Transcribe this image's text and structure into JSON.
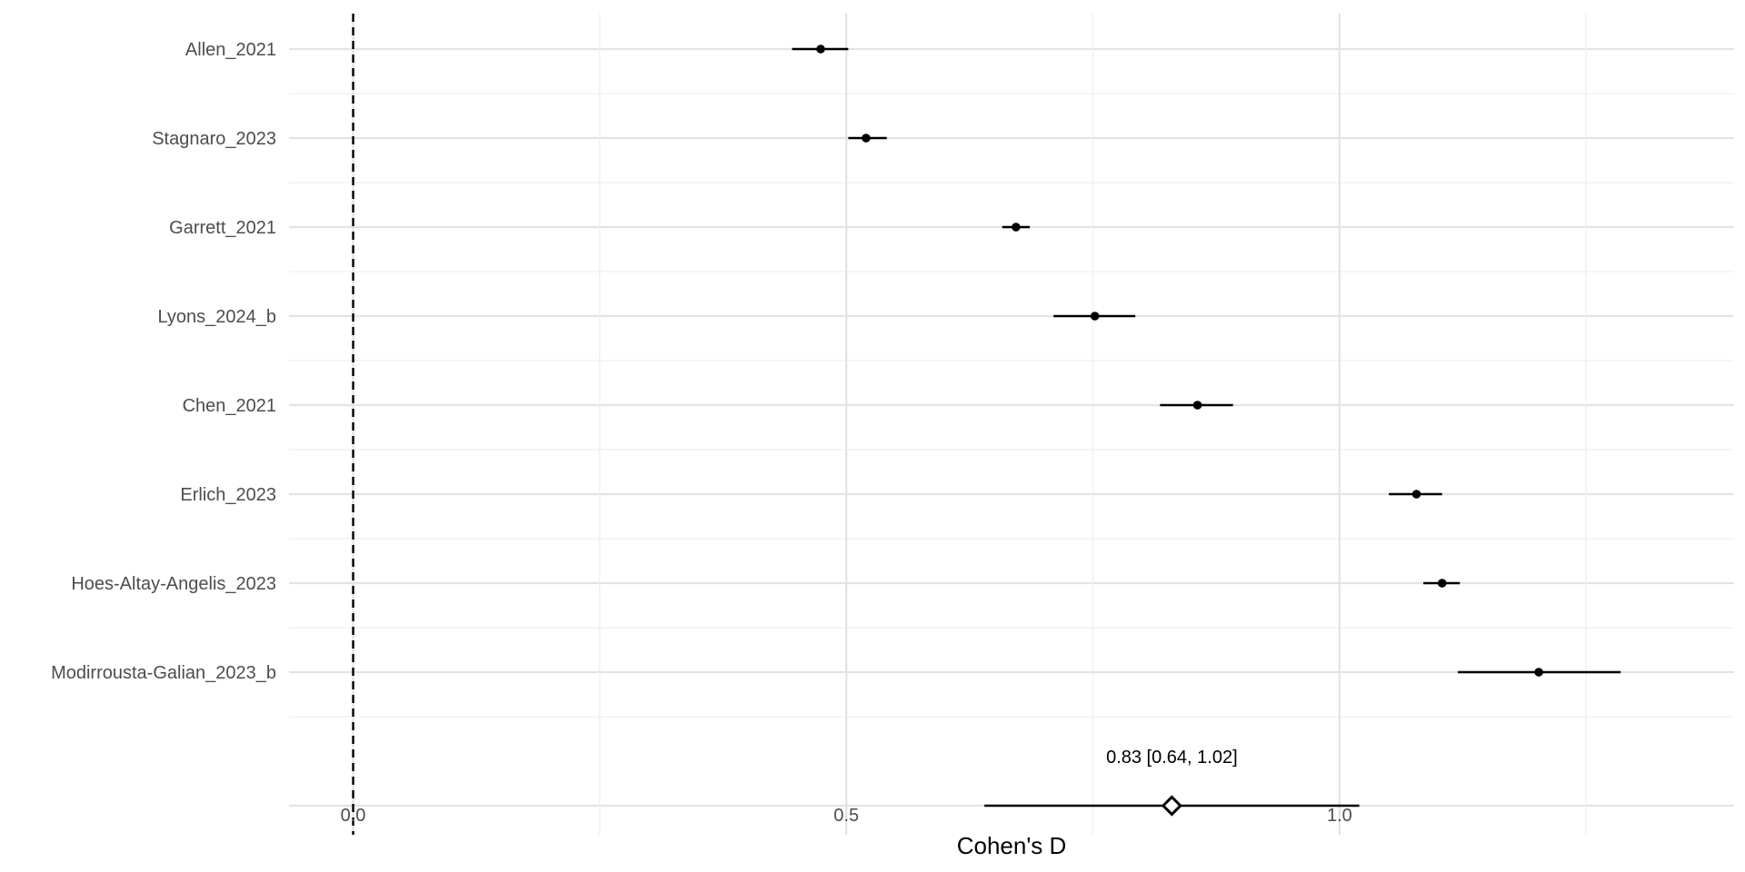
{
  "chart_data": {
    "type": "forest",
    "title": "",
    "xlabel": "Cohen's D",
    "ylabel": "",
    "xlim": [
      -0.065,
      1.4
    ],
    "x_ticks": [
      {
        "value": 0.0,
        "label": "0.0"
      },
      {
        "value": 0.5,
        "label": "0.5"
      },
      {
        "value": 1.0,
        "label": "1.0"
      }
    ],
    "x_minor_ticks": [
      0.25,
      0.75,
      1.25
    ],
    "reference_line": 0,
    "grid": true,
    "studies": [
      {
        "label": "Allen_2021",
        "estimate": 0.474,
        "lower": 0.445,
        "upper": 0.502
      },
      {
        "label": "Stagnaro_2023",
        "estimate": 0.52,
        "lower": 0.502,
        "upper": 0.541
      },
      {
        "label": "Garrett_2021",
        "estimate": 0.672,
        "lower": 0.658,
        "upper": 0.686
      },
      {
        "label": "Lyons_2024_b",
        "estimate": 0.752,
        "lower": 0.71,
        "upper": 0.793
      },
      {
        "label": "Chen_2021",
        "estimate": 0.856,
        "lower": 0.818,
        "upper": 0.892
      },
      {
        "label": "Erlich_2023",
        "estimate": 1.078,
        "lower": 1.05,
        "upper": 1.104
      },
      {
        "label": "Hoes-Altay-Angelis_2023",
        "estimate": 1.104,
        "lower": 1.085,
        "upper": 1.122
      },
      {
        "label": "Modirrousta-Galian_2023_b",
        "estimate": 1.202,
        "lower": 1.12,
        "upper": 1.285
      }
    ],
    "summary": {
      "estimate": 0.83,
      "lower": 0.64,
      "upper": 1.02,
      "label": "0.83 [0.64, 1.02]"
    },
    "colors": {
      "points": "#000000",
      "grid": "#e3e3e3"
    }
  }
}
